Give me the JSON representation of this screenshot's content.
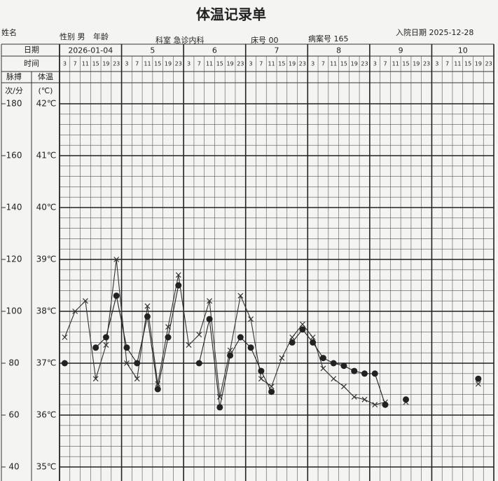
{
  "header": {
    "title": "体温记录单",
    "name_label": "姓名",
    "gender": "性别 男",
    "age_label": "年龄",
    "department": "科室 急诊内科",
    "bed": "床号 00",
    "record_no": "病案号 165",
    "admission": "入院日期 2025-12-28"
  },
  "chart_data": {
    "type": "line",
    "row_labels": {
      "date": "日期",
      "time": "时间",
      "pulse": "脉搏",
      "temp": "体温",
      "pulse_unit": "次/分",
      "temp_unit": "(℃)"
    },
    "dates": [
      "2026-01-04",
      "5",
      "6",
      "7",
      "8",
      "9",
      "10"
    ],
    "categories": [
      "3",
      "7",
      "11",
      "15",
      "19",
      "23",
      "3",
      "7",
      "11",
      "15",
      "19",
      "23",
      "3",
      "7",
      "11",
      "15",
      "19",
      "23",
      "3",
      "7",
      "11",
      "15",
      "19",
      "23",
      "3",
      "7",
      "11",
      "15",
      "19",
      "23",
      "3",
      "7",
      "11",
      "15",
      "19",
      "23",
      "3",
      "7",
      "11",
      "15",
      "19",
      "23"
    ],
    "ylim": [
      40,
      180
    ],
    "yticks": [
      40,
      60,
      80,
      100,
      120,
      140,
      160,
      180
    ],
    "y2lim": [
      35,
      42
    ],
    "y2ticks": [
      {
        "value": 35,
        "label": "35℃"
      },
      {
        "value": 36,
        "label": "36℃"
      },
      {
        "value": 37,
        "label": "37℃"
      },
      {
        "value": 38,
        "label": "38℃"
      },
      {
        "value": 39,
        "label": "39℃"
      },
      {
        "value": 40,
        "label": "40℃"
      },
      {
        "value": 41,
        "label": "41℃"
      },
      {
        "value": 42,
        "label": "42℃"
      }
    ],
    "grid": true,
    "series": [
      {
        "color": "#333",
        "marker": "x",
        "values": [
          90,
          100,
          104,
          74,
          87,
          120,
          80,
          74,
          102,
          72,
          94,
          114,
          87,
          91,
          104,
          67,
          85,
          106,
          97,
          74,
          71,
          82,
          90,
          95,
          90,
          78,
          74,
          71,
          67,
          66,
          64,
          65,
          null,
          65,
          null,
          null,
          null,
          null,
          null,
          null,
          72,
          null
        ]
      },
      {
        "color": "#222",
        "marker": "dot",
        "axis": "y2",
        "values": [
          37.0,
          null,
          null,
          37.3,
          37.5,
          38.3,
          37.3,
          37.0,
          37.9,
          36.5,
          37.5,
          38.5,
          null,
          37.0,
          37.85,
          36.15,
          37.15,
          37.5,
          37.3,
          36.85,
          36.45,
          null,
          37.4,
          37.65,
          37.4,
          37.1,
          37.0,
          36.95,
          36.85,
          36.8,
          36.8,
          36.2,
          null,
          36.3,
          null,
          null,
          null,
          null,
          null,
          null,
          36.7,
          null
        ]
      }
    ]
  }
}
